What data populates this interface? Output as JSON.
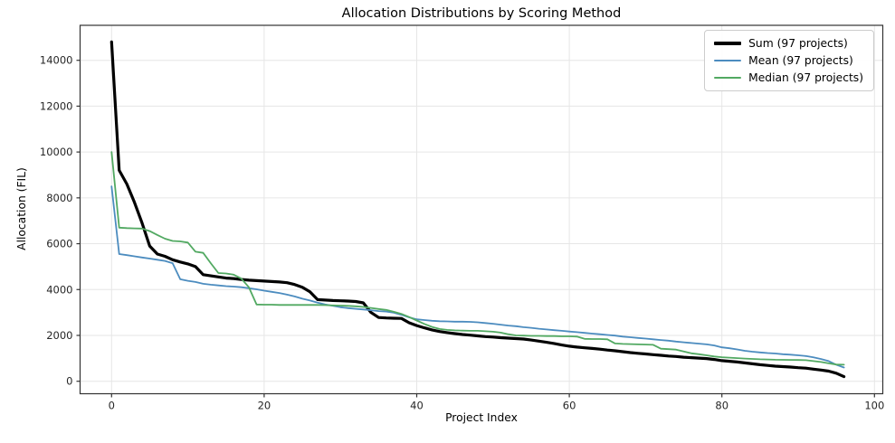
{
  "chart_data": {
    "type": "line",
    "title": "Allocation Distributions by Scoring Method",
    "xlabel": "Project Index",
    "ylabel": "Allocation (FIL)",
    "x_ticks": [
      0,
      20,
      40,
      60,
      80,
      100
    ],
    "y_ticks": [
      0,
      2000,
      4000,
      6000,
      8000,
      10000,
      12000,
      14000
    ],
    "xlim": [
      -4.8,
      100.8
    ],
    "ylim": [
      -530,
      15530
    ],
    "grid": true,
    "legend_position": "upper right",
    "x": "project index 0..96 (values sorted descending per series)",
    "series": [
      {
        "name": "Sum (97 projects)",
        "color": "#000000",
        "line_width": 3.2,
        "values": [
          14800,
          9200,
          8600,
          7800,
          6900,
          5900,
          5550,
          5450,
          5300,
          5200,
          5120,
          5000,
          4650,
          4600,
          4550,
          4500,
          4480,
          4440,
          4410,
          4390,
          4370,
          4350,
          4330,
          4300,
          4220,
          4100,
          3900,
          3560,
          3540,
          3520,
          3510,
          3500,
          3480,
          3420,
          3000,
          2780,
          2760,
          2750,
          2740,
          2550,
          2430,
          2330,
          2240,
          2170,
          2120,
          2080,
          2040,
          2010,
          1980,
          1950,
          1930,
          1900,
          1880,
          1860,
          1840,
          1800,
          1750,
          1700,
          1650,
          1580,
          1530,
          1490,
          1460,
          1430,
          1400,
          1360,
          1330,
          1290,
          1250,
          1220,
          1190,
          1160,
          1130,
          1100,
          1080,
          1050,
          1030,
          1010,
          990,
          950,
          900,
          870,
          840,
          800,
          760,
          720,
          690,
          660,
          640,
          620,
          590,
          570,
          530,
          490,
          440,
          350,
          200
        ]
      },
      {
        "name": "Mean (97 projects)",
        "color": "#4c8cbf",
        "line_width": 1.8,
        "values": [
          8500,
          5550,
          5500,
          5450,
          5400,
          5350,
          5300,
          5250,
          5150,
          4450,
          4380,
          4330,
          4250,
          4210,
          4180,
          4150,
          4130,
          4100,
          4060,
          4010,
          3950,
          3900,
          3850,
          3780,
          3700,
          3600,
          3520,
          3430,
          3350,
          3290,
          3230,
          3190,
          3160,
          3130,
          3100,
          3060,
          3040,
          2990,
          2900,
          2790,
          2700,
          2670,
          2640,
          2620,
          2610,
          2600,
          2600,
          2590,
          2570,
          2540,
          2510,
          2470,
          2430,
          2400,
          2360,
          2330,
          2290,
          2260,
          2230,
          2200,
          2170,
          2140,
          2110,
          2080,
          2050,
          2020,
          1990,
          1950,
          1920,
          1890,
          1860,
          1830,
          1800,
          1770,
          1730,
          1700,
          1670,
          1640,
          1610,
          1560,
          1480,
          1440,
          1390,
          1330,
          1290,
          1260,
          1230,
          1210,
          1180,
          1160,
          1130,
          1100,
          1040,
          970,
          880,
          720,
          600
        ]
      },
      {
        "name": "Median (97 projects)",
        "color": "#52a962",
        "line_width": 1.8,
        "values": [
          10000,
          6700,
          6680,
          6670,
          6660,
          6550,
          6380,
          6220,
          6120,
          6100,
          6050,
          5650,
          5600,
          5150,
          4720,
          4700,
          4650,
          4480,
          4100,
          3350,
          3340,
          3340,
          3330,
          3330,
          3330,
          3330,
          3330,
          3330,
          3320,
          3310,
          3300,
          3290,
          3270,
          3240,
          3200,
          3150,
          3110,
          3030,
          2940,
          2800,
          2650,
          2500,
          2370,
          2280,
          2240,
          2220,
          2210,
          2200,
          2200,
          2180,
          2160,
          2120,
          2050,
          2000,
          1990,
          1980,
          1980,
          1970,
          1970,
          1960,
          1960,
          1950,
          1850,
          1840,
          1840,
          1830,
          1650,
          1630,
          1620,
          1610,
          1600,
          1590,
          1420,
          1400,
          1380,
          1300,
          1220,
          1180,
          1130,
          1080,
          1050,
          1030,
          1010,
          990,
          975,
          960,
          950,
          940,
          935,
          930,
          925,
          920,
          880,
          840,
          780,
          730,
          720
        ]
      }
    ],
    "style": {
      "grid_color": "#e6e6e6",
      "spine_color": "#333333",
      "tick_label_color": "#262626",
      "background": "#ffffff"
    }
  }
}
